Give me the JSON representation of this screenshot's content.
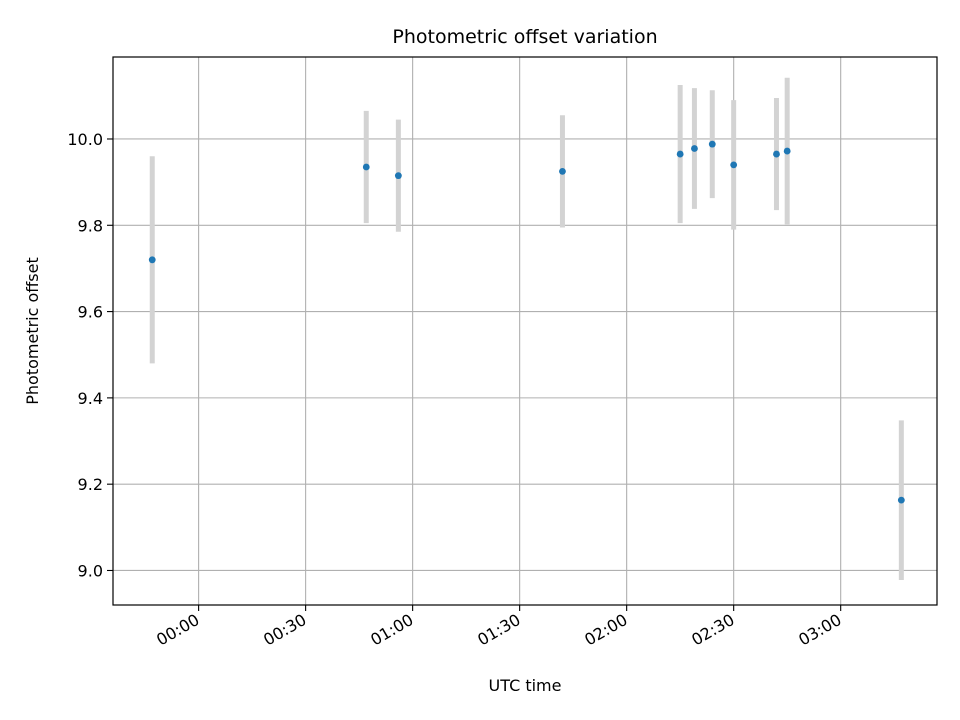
{
  "chart_data": {
    "type": "scatter",
    "title": "Photometric offset variation",
    "xlabel": "UTC time",
    "ylabel": "Photometric offset",
    "x_ticks": [
      "00:00",
      "00:30",
      "01:00",
      "01:30",
      "02:00",
      "02:30",
      "03:00"
    ],
    "y_ticks": [
      "9.0",
      "9.2",
      "9.4",
      "9.6",
      "9.8",
      "10.0"
    ],
    "xlim": [
      "23:36",
      "03:27"
    ],
    "ylim": [
      8.92,
      10.19
    ],
    "grid": true,
    "point_color": "#1f77b4",
    "errorbar_color": "#d3d3d3",
    "points": [
      {
        "x": "23:47",
        "y": 9.72,
        "err": 0.24
      },
      {
        "x": "00:47",
        "y": 9.935,
        "err": 0.13
      },
      {
        "x": "00:56",
        "y": 9.915,
        "err": 0.13
      },
      {
        "x": "01:42",
        "y": 9.925,
        "err": 0.13
      },
      {
        "x": "02:15",
        "y": 9.965,
        "err": 0.16
      },
      {
        "x": "02:19",
        "y": 9.978,
        "err": 0.14
      },
      {
        "x": "02:24",
        "y": 9.988,
        "err": 0.125
      },
      {
        "x": "02:30",
        "y": 9.94,
        "err": 0.15
      },
      {
        "x": "02:42",
        "y": 9.965,
        "err": 0.13
      },
      {
        "x": "02:45",
        "y": 9.972,
        "err": 0.17
      },
      {
        "x": "03:17",
        "y": 9.163,
        "err": 0.185
      }
    ]
  }
}
